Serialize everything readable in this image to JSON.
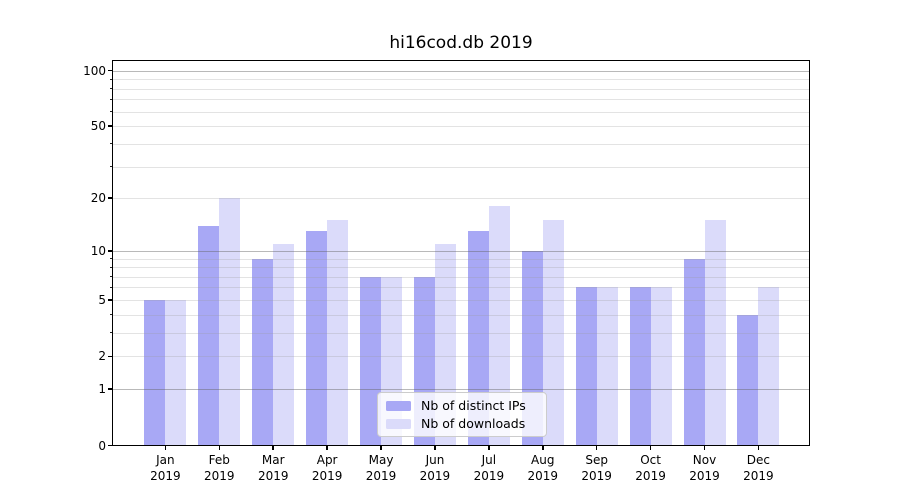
{
  "title": "hi16cod.db 2019",
  "chart_data": {
    "type": "bar",
    "title": "hi16cod.db 2019",
    "categories": [
      "Jan",
      "Feb",
      "Mar",
      "Apr",
      "May",
      "Jun",
      "Jul",
      "Aug",
      "Sep",
      "Oct",
      "Nov",
      "Dec"
    ],
    "year_label": "2019",
    "series": [
      {
        "name": "Nb of distinct IPs",
        "color": "#a8a8f5",
        "values": [
          5,
          14,
          9,
          13,
          7,
          7,
          13,
          10,
          6,
          6,
          9,
          4
        ]
      },
      {
        "name": "Nb of downloads",
        "color": "#dbdbfa",
        "values": [
          5,
          20,
          11,
          15,
          7,
          11,
          18,
          15,
          6,
          6,
          15,
          6
        ]
      }
    ],
    "yscale": "log1p",
    "ylim": [
      0,
      113
    ],
    "yticks": [
      0,
      1,
      2,
      5,
      10,
      20,
      50,
      100
    ],
    "gridlines_major": [
      1,
      10,
      100
    ],
    "gridlines_minor": [
      2,
      3,
      4,
      5,
      6,
      7,
      8,
      9,
      20,
      30,
      40,
      50,
      60,
      70,
      80,
      90
    ],
    "grid": true,
    "legend_position": "lower center"
  }
}
